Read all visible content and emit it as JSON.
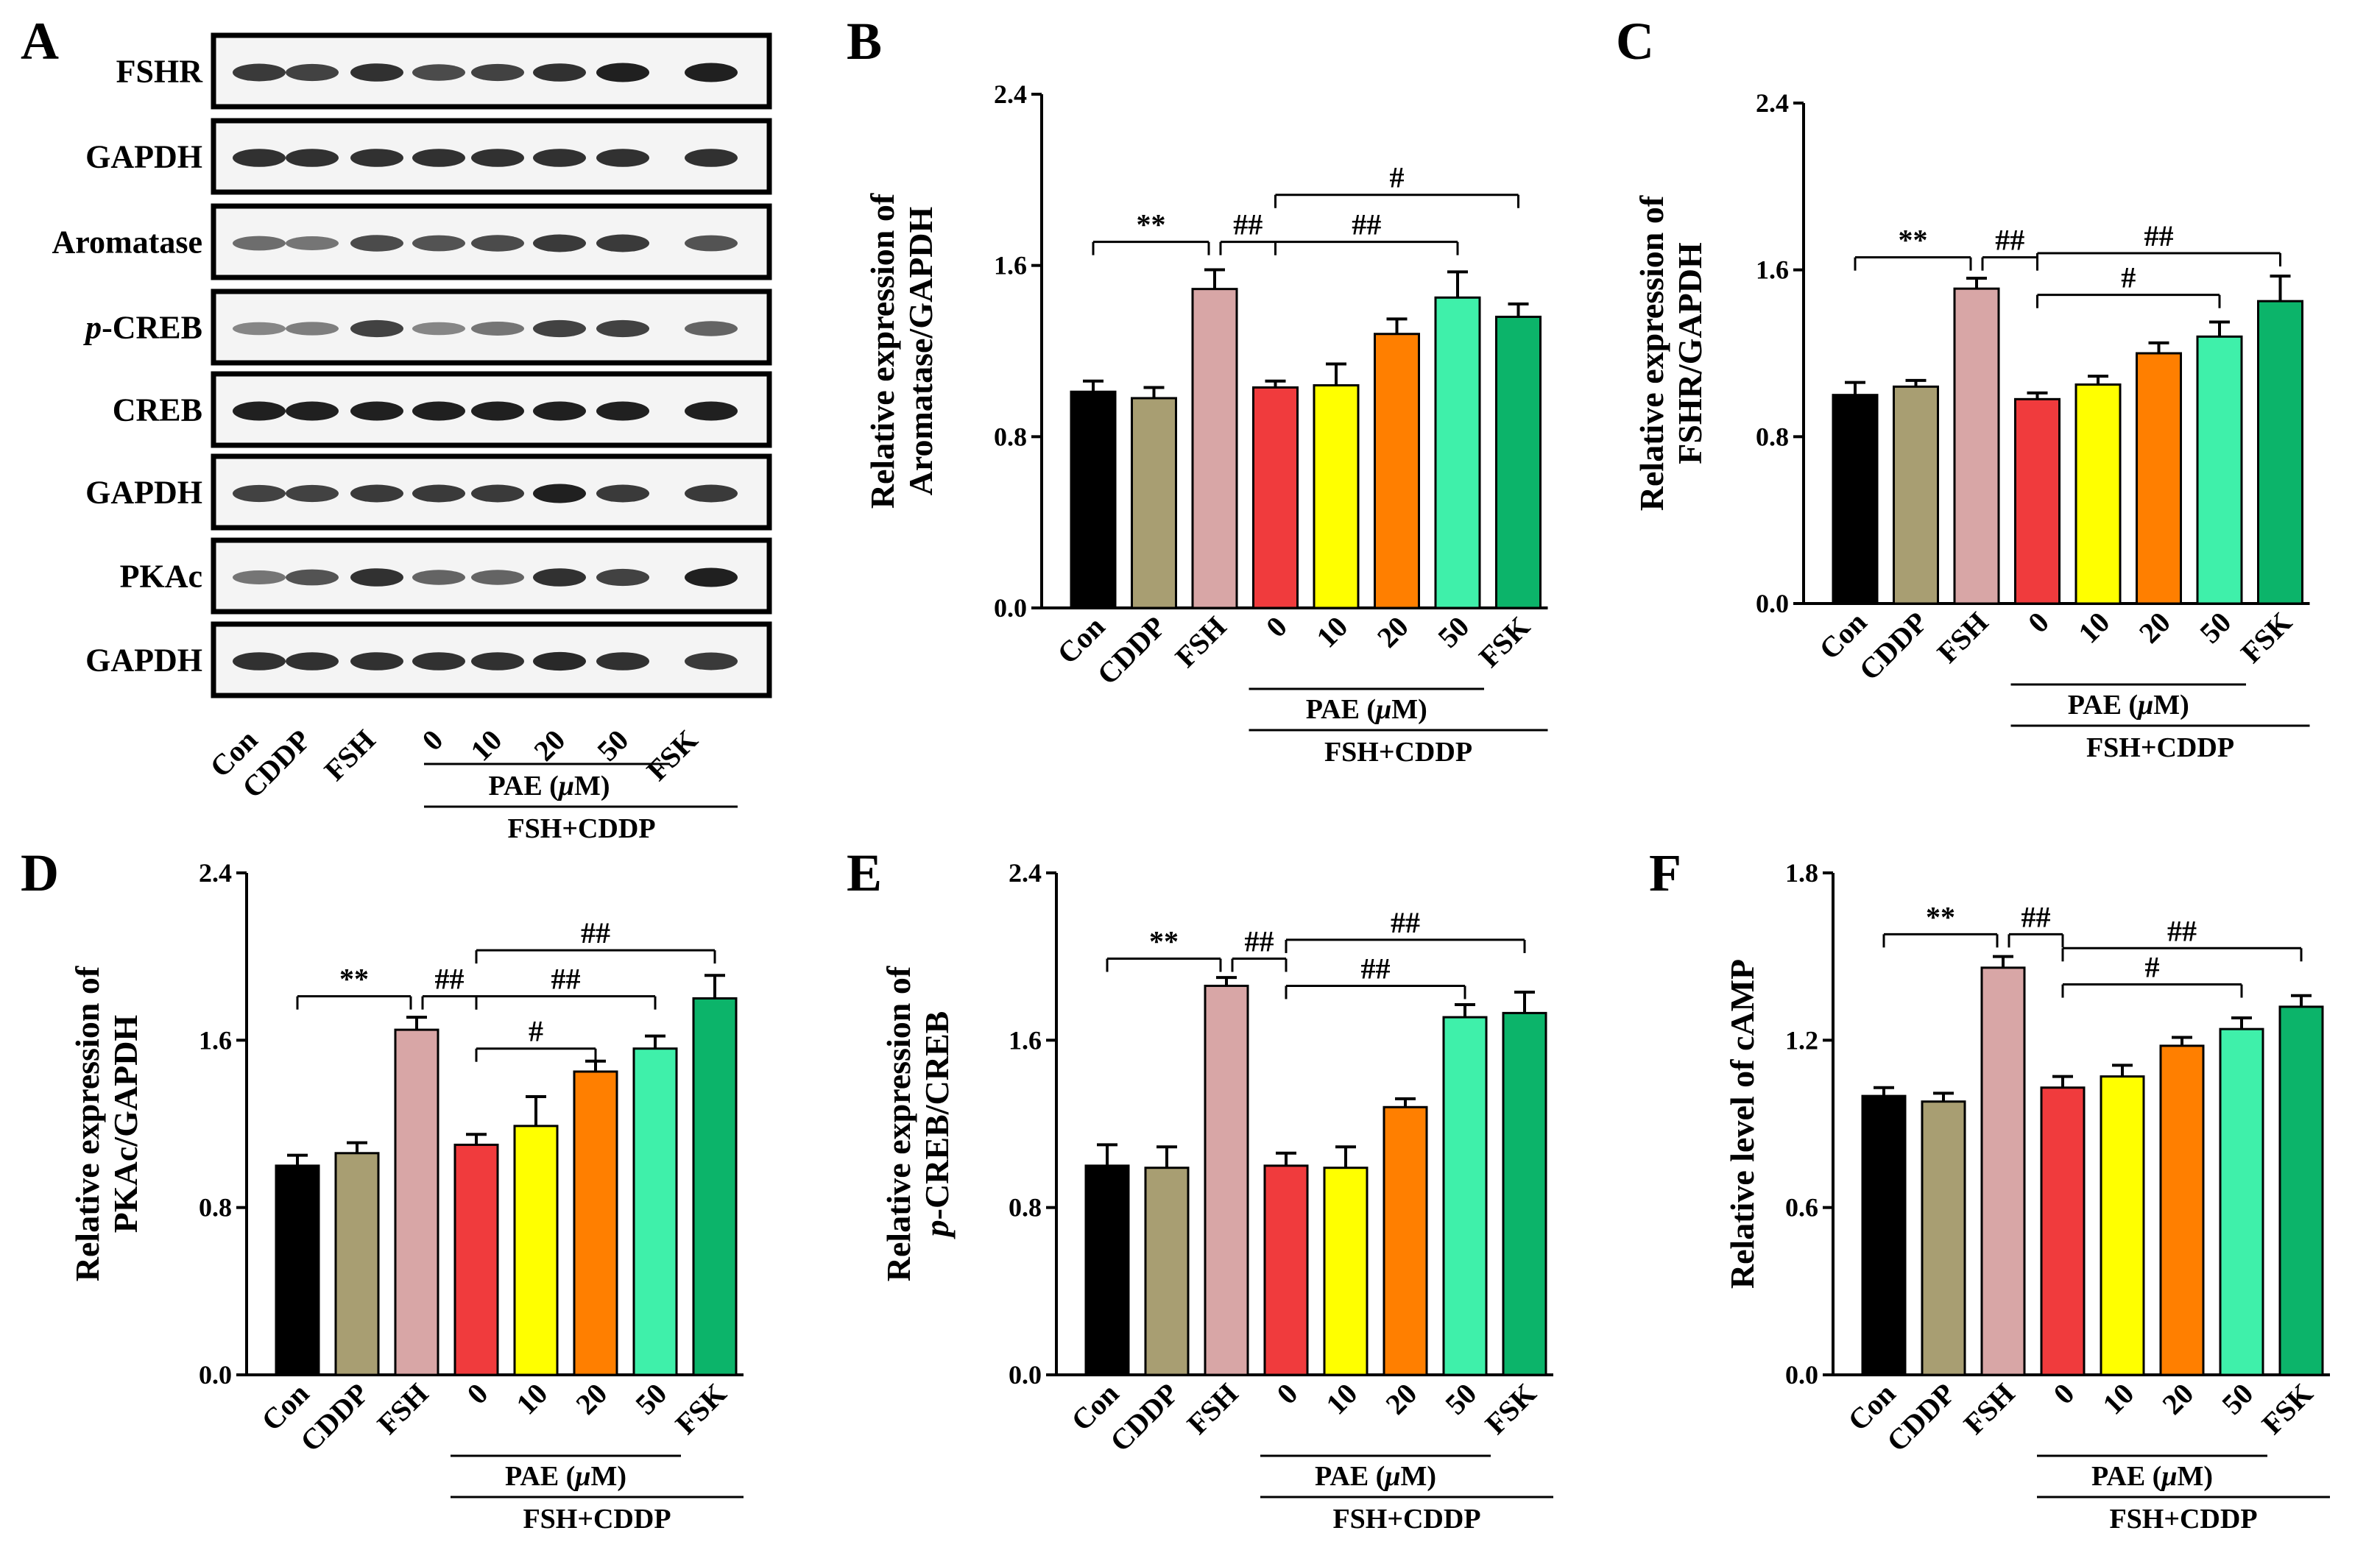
{
  "figure": {
    "panel_letters": [
      "A",
      "B",
      "C",
      "D",
      "E",
      "F"
    ],
    "bar_colors": [
      "#000000",
      "#a89e72",
      "#d8a6a6",
      "#f03b3d",
      "#ffff00",
      "#ff7f00",
      "#3ff0aa",
      "#0cb46a"
    ]
  },
  "blot": {
    "rows": [
      "FSHR",
      "GAPDH",
      "Aromatase",
      "p-CREB",
      "CREB",
      "GAPDH",
      "PKAc",
      "GAPDH"
    ],
    "lane_labels": [
      "Con",
      "CDDP",
      "FSH",
      "0",
      "10",
      "20",
      "50",
      "FSK"
    ],
    "group_label": "PAE (μM)",
    "treatment_label": "FSH+CDDP"
  },
  "chart_data": [
    {
      "type": "bar",
      "panel": "B",
      "ylabel_lines": [
        "Relative expression of",
        "Aromatase/GAPDH"
      ],
      "categories": [
        "Con",
        "CDDP",
        "FSH",
        "0",
        "10",
        "20",
        "50",
        "FSK"
      ],
      "values": [
        1.01,
        0.98,
        1.49,
        1.03,
        1.04,
        1.28,
        1.45,
        1.36
      ],
      "errors": [
        0.05,
        0.05,
        0.09,
        0.03,
        0.1,
        0.07,
        0.12,
        0.06
      ],
      "ylim": [
        0,
        2.4
      ],
      "yticks": [
        "0.0",
        "0.8",
        "1.6",
        "2.4"
      ],
      "group_label": "PAE (μM)",
      "treatment_label": "FSH+CDDP",
      "significance": [
        {
          "from": 0,
          "to": 2,
          "label": "**",
          "level": 1.71
        },
        {
          "from": 2,
          "to": 3,
          "label": "##",
          "level": 1.71
        },
        {
          "from": 3,
          "to": 6,
          "label": "##",
          "level": 1.71
        },
        {
          "from": 3,
          "to": 7,
          "label": "#",
          "level": 1.93
        }
      ]
    },
    {
      "type": "bar",
      "panel": "C",
      "ylabel_lines": [
        "Relative expression of",
        "FSHR/GAPDH"
      ],
      "categories": [
        "Con",
        "CDDP",
        "FSH",
        "0",
        "10",
        "20",
        "50",
        "FSK"
      ],
      "values": [
        1.0,
        1.04,
        1.51,
        0.98,
        1.05,
        1.2,
        1.28,
        1.45
      ],
      "errors": [
        0.06,
        0.03,
        0.05,
        0.03,
        0.04,
        0.05,
        0.07,
        0.12
      ],
      "ylim": [
        0,
        2.4
      ],
      "yticks": [
        "0.0",
        "0.8",
        "1.6",
        "2.4"
      ],
      "group_label": "PAE (μM)",
      "treatment_label": "FSH+CDDP",
      "significance": [
        {
          "from": 0,
          "to": 2,
          "label": "**",
          "level": 1.66
        },
        {
          "from": 2,
          "to": 3,
          "label": "##",
          "level": 1.66
        },
        {
          "from": 3,
          "to": 6,
          "label": "#",
          "level": 1.48
        },
        {
          "from": 3,
          "to": 7,
          "label": "##",
          "level": 1.68
        }
      ]
    },
    {
      "type": "bar",
      "panel": "D",
      "ylabel_lines": [
        "Relative expression of",
        "PKAc/GAPDH"
      ],
      "categories": [
        "Con",
        "CDDP",
        "FSH",
        "0",
        "10",
        "20",
        "50",
        "FSK"
      ],
      "values": [
        1.0,
        1.06,
        1.65,
        1.1,
        1.19,
        1.45,
        1.56,
        1.8
      ],
      "errors": [
        0.05,
        0.05,
        0.06,
        0.05,
        0.14,
        0.05,
        0.06,
        0.11
      ],
      "ylim": [
        0,
        2.4
      ],
      "yticks": [
        "0.0",
        "0.8",
        "1.6",
        "2.4"
      ],
      "group_label": "PAE (μM)",
      "treatment_label": "FSH+CDDP",
      "significance": [
        {
          "from": 0,
          "to": 2,
          "label": "**",
          "level": 1.81
        },
        {
          "from": 2,
          "to": 3,
          "label": "##",
          "level": 1.81
        },
        {
          "from": 3,
          "to": 5,
          "label": "#",
          "level": 1.56
        },
        {
          "from": 3,
          "to": 6,
          "label": "##",
          "level": 1.81
        },
        {
          "from": 3,
          "to": 7,
          "label": "##",
          "level": 2.03
        }
      ]
    },
    {
      "type": "bar",
      "panel": "E",
      "ylabel_lines": [
        "Relative expression of",
        "p-CREB/CREB"
      ],
      "categories": [
        "Con",
        "CDDP",
        "FSH",
        "0",
        "10",
        "20",
        "50",
        "FSK"
      ],
      "values": [
        1.0,
        0.99,
        1.86,
        1.0,
        0.99,
        1.28,
        1.71,
        1.73
      ],
      "errors": [
        0.1,
        0.1,
        0.04,
        0.06,
        0.1,
        0.04,
        0.06,
        0.1
      ],
      "ylim": [
        0,
        2.4
      ],
      "yticks": [
        "0.0",
        "0.8",
        "1.6",
        "2.4"
      ],
      "group_label": "PAE (μM)",
      "treatment_label": "FSH+CDDP",
      "significance": [
        {
          "from": 0,
          "to": 2,
          "label": "**",
          "level": 1.99
        },
        {
          "from": 2,
          "to": 3,
          "label": "##",
          "level": 1.99
        },
        {
          "from": 3,
          "to": 6,
          "label": "##",
          "level": 1.86
        },
        {
          "from": 3,
          "to": 7,
          "label": "##",
          "level": 2.08
        }
      ]
    },
    {
      "type": "bar",
      "panel": "F",
      "ylabel_lines": [
        "Relative level of cAMP"
      ],
      "categories": [
        "Con",
        "CDDP",
        "FSH",
        "0",
        "10",
        "20",
        "50",
        "FSK"
      ],
      "values": [
        1.0,
        0.98,
        1.46,
        1.03,
        1.07,
        1.18,
        1.24,
        1.32
      ],
      "errors": [
        0.03,
        0.03,
        0.04,
        0.04,
        0.04,
        0.03,
        0.04,
        0.04
      ],
      "ylim": [
        0,
        1.8
      ],
      "yticks": [
        "0.0",
        "0.6",
        "1.2",
        "1.8"
      ],
      "group_label": "PAE (μM)",
      "treatment_label": "FSH+CDDP",
      "significance": [
        {
          "from": 0,
          "to": 2,
          "label": "**",
          "level": 1.58
        },
        {
          "from": 2,
          "to": 3,
          "label": "##",
          "level": 1.58
        },
        {
          "from": 3,
          "to": 6,
          "label": "#",
          "level": 1.4
        },
        {
          "from": 3,
          "to": 7,
          "label": "##",
          "level": 1.53
        }
      ]
    }
  ]
}
